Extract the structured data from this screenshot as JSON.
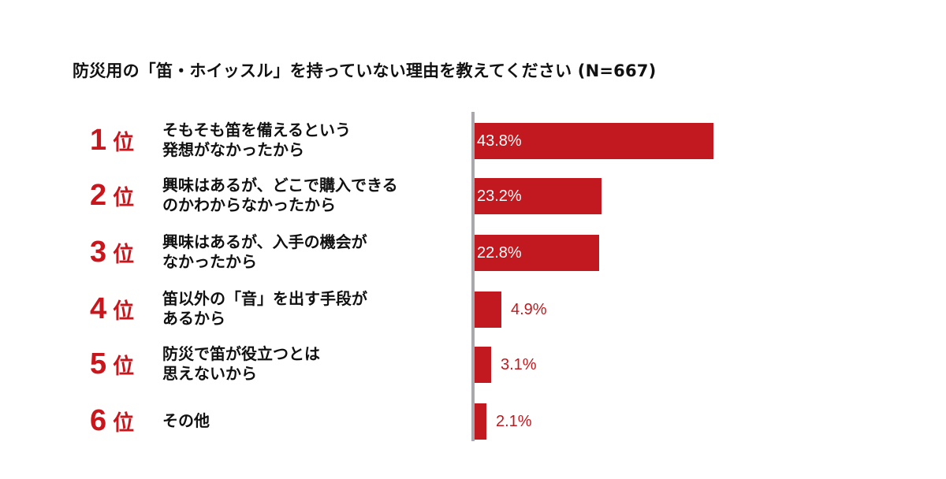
{
  "title": "防災用の「笛・ホイッスル」を持っていない理由を教えてください (N=667)",
  "colors": {
    "accent": "#c1191f",
    "rank_text": "#c8161d",
    "axis": "#a9a9ad",
    "text": "#111111"
  },
  "rows": [
    {
      "rank": "1",
      "rank_suffix": "位",
      "line1": "そもそも笛を備えるという",
      "line2": "発想がなかったから",
      "value_label": "43.8%"
    },
    {
      "rank": "2",
      "rank_suffix": "位",
      "line1": "興味はあるが、どこで購入できる",
      "line2": "のかわからなかったから",
      "value_label": "23.2%"
    },
    {
      "rank": "3",
      "rank_suffix": "位",
      "line1": "興味はあるが、入手の機会が",
      "line2": "なかったから",
      "value_label": "22.8%"
    },
    {
      "rank": "4",
      "rank_suffix": "位",
      "line1": "笛以外の「音」を出す手段が",
      "line2": "あるから",
      "value_label": "4.9%"
    },
    {
      "rank": "5",
      "rank_suffix": "位",
      "line1": "防災で笛が役立つとは",
      "line2": "思えないから",
      "value_label": "3.1%"
    },
    {
      "rank": "6",
      "rank_suffix": "位",
      "line1": "その他",
      "line2": "",
      "value_label": "2.1%"
    }
  ],
  "chart_data": {
    "type": "bar",
    "orientation": "horizontal",
    "title": "防災用の「笛・ホイッスル」を持っていない理由を教えてください (N=667)",
    "categories": [
      "そもそも笛を備えるという発想がなかったから",
      "興味はあるが、どこで購入できるのかわからなかったから",
      "興味はあるが、入手の機会がなかったから",
      "笛以外の「音」を出す手段があるから",
      "防災で笛が役立つとは思えないから",
      "その他"
    ],
    "ranks": [
      "1位",
      "2位",
      "3位",
      "4位",
      "5位",
      "6位"
    ],
    "values": [
      43.8,
      23.2,
      22.8,
      4.9,
      3.1,
      2.1
    ],
    "unit": "%",
    "n": 667,
    "xlabel": "",
    "ylabel": "",
    "grid": false,
    "legend": null,
    "bar_color": "#c1191f"
  }
}
